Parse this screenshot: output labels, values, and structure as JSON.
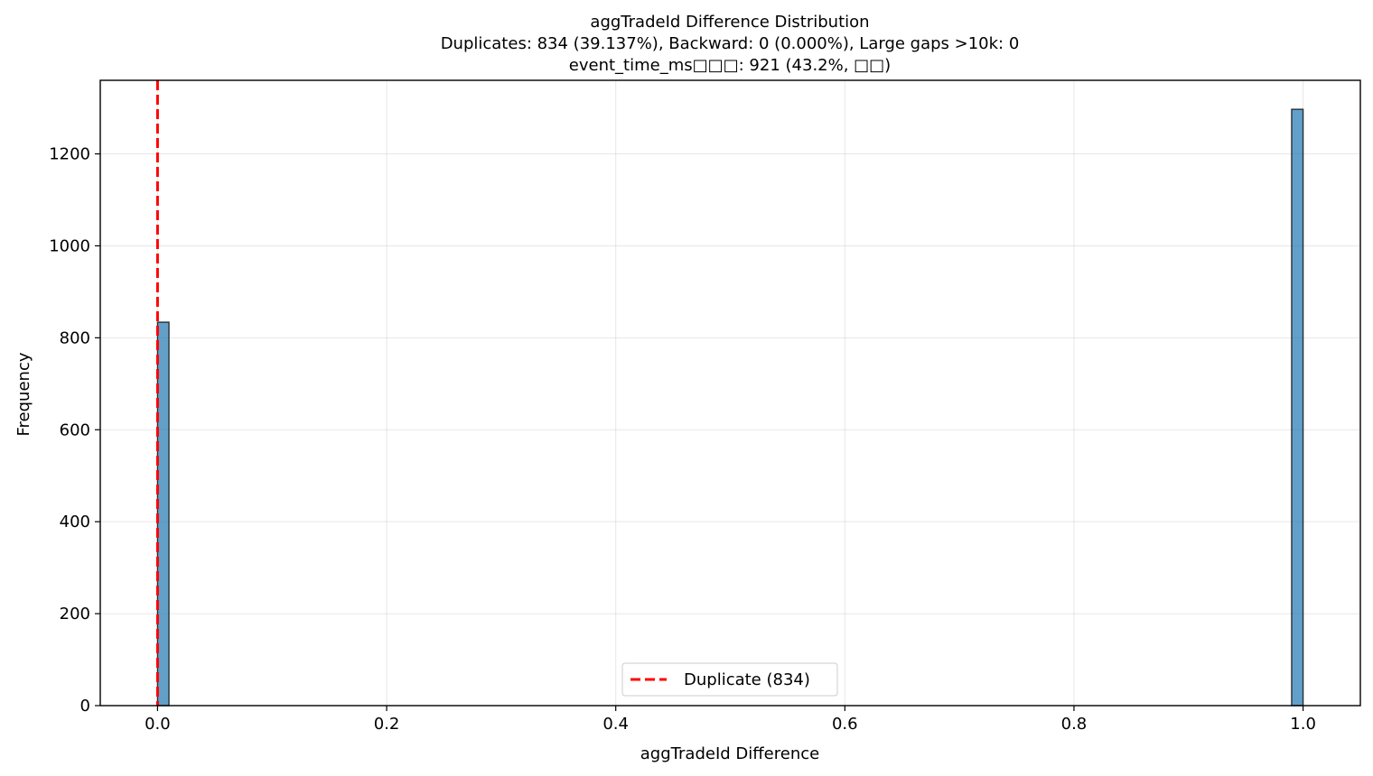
{
  "chart_data": {
    "type": "bar",
    "title_lines": [
      "aggTradeId Difference Distribution",
      "Duplicates: 834 (39.137%), Backward: 0 (0.000%), Large gaps >10k: 0",
      "event_time_ms□□□: 921 (43.2%, □□)"
    ],
    "xlabel": "aggTradeId Difference",
    "ylabel": "Frequency",
    "xlim": [
      -0.05,
      1.05
    ],
    "ylim": [
      0,
      1360
    ],
    "xticks": [
      0.0,
      0.2,
      0.4,
      0.6,
      0.8,
      1.0
    ],
    "xtick_labels": [
      "0.0",
      "0.2",
      "0.4",
      "0.6",
      "0.8",
      "1.0"
    ],
    "yticks": [
      0,
      200,
      400,
      600,
      800,
      1000,
      1200
    ],
    "ytick_labels": [
      "0",
      "200",
      "400",
      "600",
      "800",
      "1000",
      "1200"
    ],
    "grid": true,
    "bars": [
      {
        "x0": 0.0,
        "x1": 0.01,
        "value": 834
      },
      {
        "x0": 0.99,
        "x1": 1.0,
        "value": 1297
      }
    ],
    "bar_color": "#1f77b4",
    "vline": {
      "x": 0,
      "color": "#ff0000",
      "label": "Duplicate (834)"
    },
    "legend": {
      "position": "lower-center",
      "entries": [
        "Duplicate (834)"
      ]
    }
  }
}
